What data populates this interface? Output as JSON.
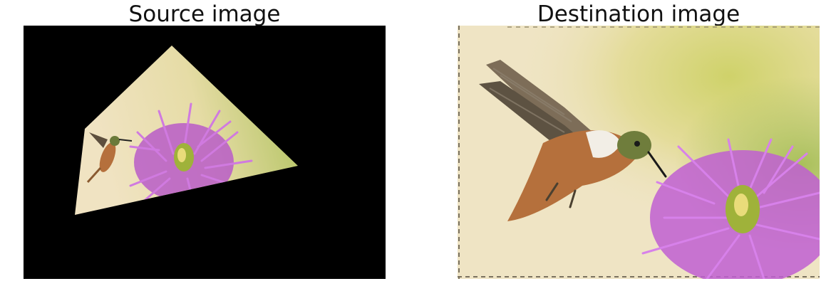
{
  "figure": {
    "panels": [
      {
        "title": "Source image"
      },
      {
        "title": "Destination image"
      }
    ]
  },
  "colors": {
    "figure_background": "#ffffff",
    "source_background": "#000000",
    "cream_background": "#efe4c4",
    "green_background": "#c6cf6a",
    "petal_purple": "#c45fd6",
    "flower_center": "#9fb23a",
    "bird_body": "#b5703c",
    "bird_wing": "#5d4f3e"
  },
  "icons": {
    "subject_1": "hummingbird",
    "subject_2": "cleome-flower"
  }
}
